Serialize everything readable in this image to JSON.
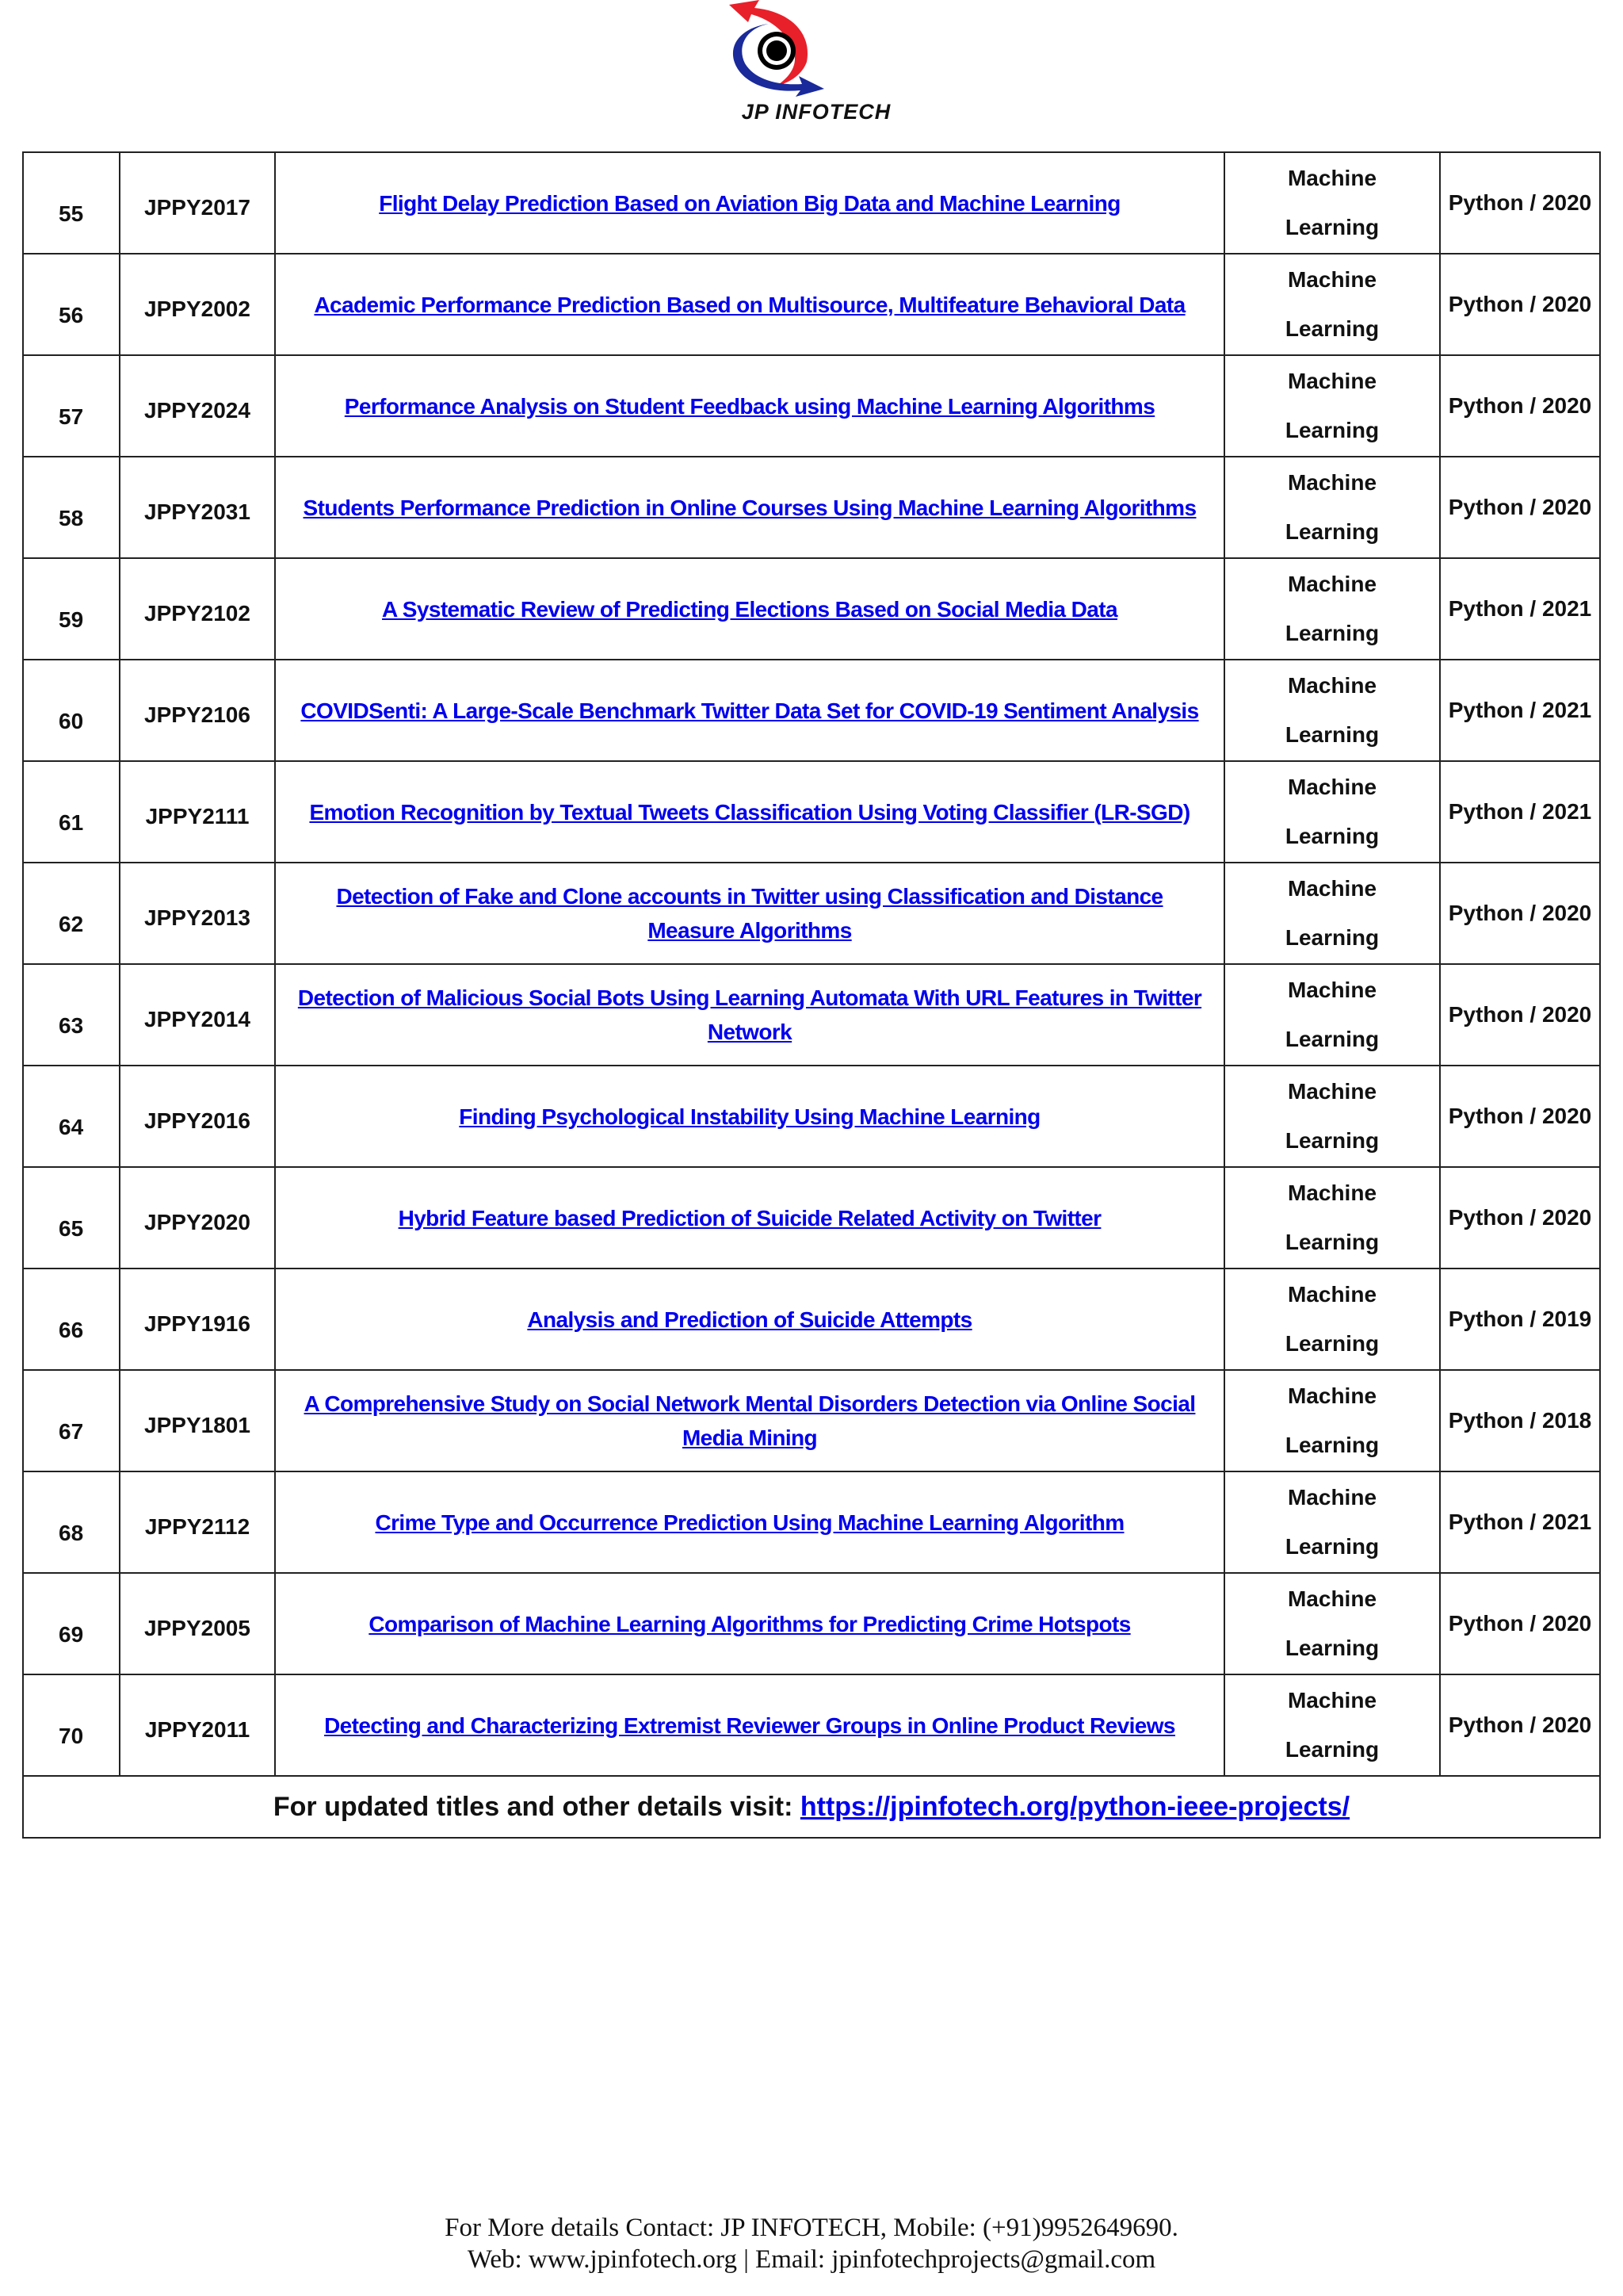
{
  "header": {
    "logo_text": "JP INFOTECH",
    "logo_colors": {
      "red": "#e8202a",
      "blue": "#1a2a9a",
      "black": "#000000"
    }
  },
  "rows": [
    {
      "no": "55",
      "id": "JPPY2017",
      "title": "Flight Delay Prediction Based on Aviation Big Data and Machine Learning",
      "domain_line1": "Machine",
      "domain_line2": "Learning",
      "lang": "Python / 2020"
    },
    {
      "no": "56",
      "id": "JPPY2002",
      "title": "Academic Performance Prediction Based on Multisource, Multifeature Behavioral Data",
      "domain_line1": "Machine",
      "domain_line2": "Learning",
      "lang": "Python / 2020"
    },
    {
      "no": "57",
      "id": "JPPY2024",
      "title": "Performance Analysis on Student Feedback using Machine Learning Algorithms",
      "domain_line1": "Machine",
      "domain_line2": "Learning",
      "lang": "Python / 2020"
    },
    {
      "no": "58",
      "id": "JPPY2031",
      "title": "Students Performance Prediction in Online Courses Using Machine Learning Algorithms",
      "domain_line1": "Machine",
      "domain_line2": "Learning",
      "lang": "Python / 2020"
    },
    {
      "no": "59",
      "id": "JPPY2102",
      "title": "A Systematic Review of Predicting Elections Based on Social Media Data",
      "domain_line1": "Machine",
      "domain_line2": "Learning",
      "lang": "Python / 2021"
    },
    {
      "no": "60",
      "id": "JPPY2106",
      "title": "COVIDSenti: A Large-Scale Benchmark Twitter Data Set for COVID-19 Sentiment Analysis",
      "domain_line1": "Machine",
      "domain_line2": "Learning",
      "lang": "Python / 2021"
    },
    {
      "no": "61",
      "id": "JPPY2111",
      "title": "Emotion Recognition by Textual Tweets Classification Using Voting Classifier (LR-SGD)",
      "domain_line1": "Machine",
      "domain_line2": "Learning",
      "lang": "Python / 2021"
    },
    {
      "no": "62",
      "id": "JPPY2013",
      "title": "Detection of Fake and Clone accounts in Twitter using Classification and Distance Measure Algorithms",
      "domain_line1": "Machine",
      "domain_line2": "Learning",
      "lang": "Python / 2020"
    },
    {
      "no": "63",
      "id": "JPPY2014",
      "title": "Detection of Malicious Social Bots Using Learning Automata With URL Features in Twitter Network",
      "domain_line1": "Machine",
      "domain_line2": "Learning",
      "lang": "Python / 2020"
    },
    {
      "no": "64",
      "id": "JPPY2016",
      "title": "Finding Psychological Instability Using Machine Learning",
      "domain_line1": "Machine",
      "domain_line2": "Learning",
      "lang": "Python / 2020"
    },
    {
      "no": "65",
      "id": "JPPY2020",
      "title": "Hybrid Feature based Prediction of Suicide Related Activity on Twitter",
      "domain_line1": "Machine",
      "domain_line2": "Learning",
      "lang": "Python / 2020"
    },
    {
      "no": "66",
      "id": "JPPY1916",
      "title": "Analysis and Prediction of Suicide Attempts",
      "domain_line1": "Machine",
      "domain_line2": "Learning",
      "lang": "Python / 2019"
    },
    {
      "no": "67",
      "id": "JPPY1801",
      "title": "A Comprehensive Study on Social Network Mental Disorders Detection via Online Social Media Mining",
      "domain_line1": "Machine",
      "domain_line2": "Learning",
      "lang": "Python / 2018"
    },
    {
      "no": "68",
      "id": "JPPY2112",
      "title": "Crime Type and Occurrence Prediction Using Machine Learning Algorithm",
      "domain_line1": "Machine",
      "domain_line2": "Learning",
      "lang": "Python / 2021"
    },
    {
      "no": "69",
      "id": "JPPY2005",
      "title": "Comparison of Machine Learning Algorithms for Predicting Crime Hotspots",
      "domain_line1": "Machine",
      "domain_line2": "Learning",
      "lang": "Python / 2020"
    },
    {
      "no": "70",
      "id": "JPPY2011",
      "title": "Detecting and Characterizing Extremist Reviewer Groups in Online Product Reviews",
      "domain_line1": "Machine",
      "domain_line2": "Learning",
      "lang": "Python / 2020"
    }
  ],
  "footer_row": {
    "text": "For updated titles and other details visit: ",
    "link": "https://jpinfotech.org/python-ieee-projects/"
  },
  "contact": {
    "line1": "For More details Contact: JP INFOTECH,  Mobile: (+91)9952649690.",
    "line2": "Web: www.jpinfotech.org | Email: jpinfotechprojects@gmail.com"
  },
  "colors": {
    "link": "#0000ee",
    "text": "#111111"
  }
}
